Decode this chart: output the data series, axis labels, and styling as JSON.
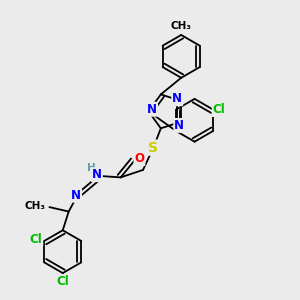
{
  "bg_color": "#ebebeb",
  "atom_colors": {
    "N": "#0000ff",
    "O": "#ff0000",
    "S": "#cccc00",
    "Cl": "#00bb00",
    "C": "#000000",
    "H": "#5f9ea0"
  },
  "bond_color": "#000000",
  "font_size_atom": 8.5
}
